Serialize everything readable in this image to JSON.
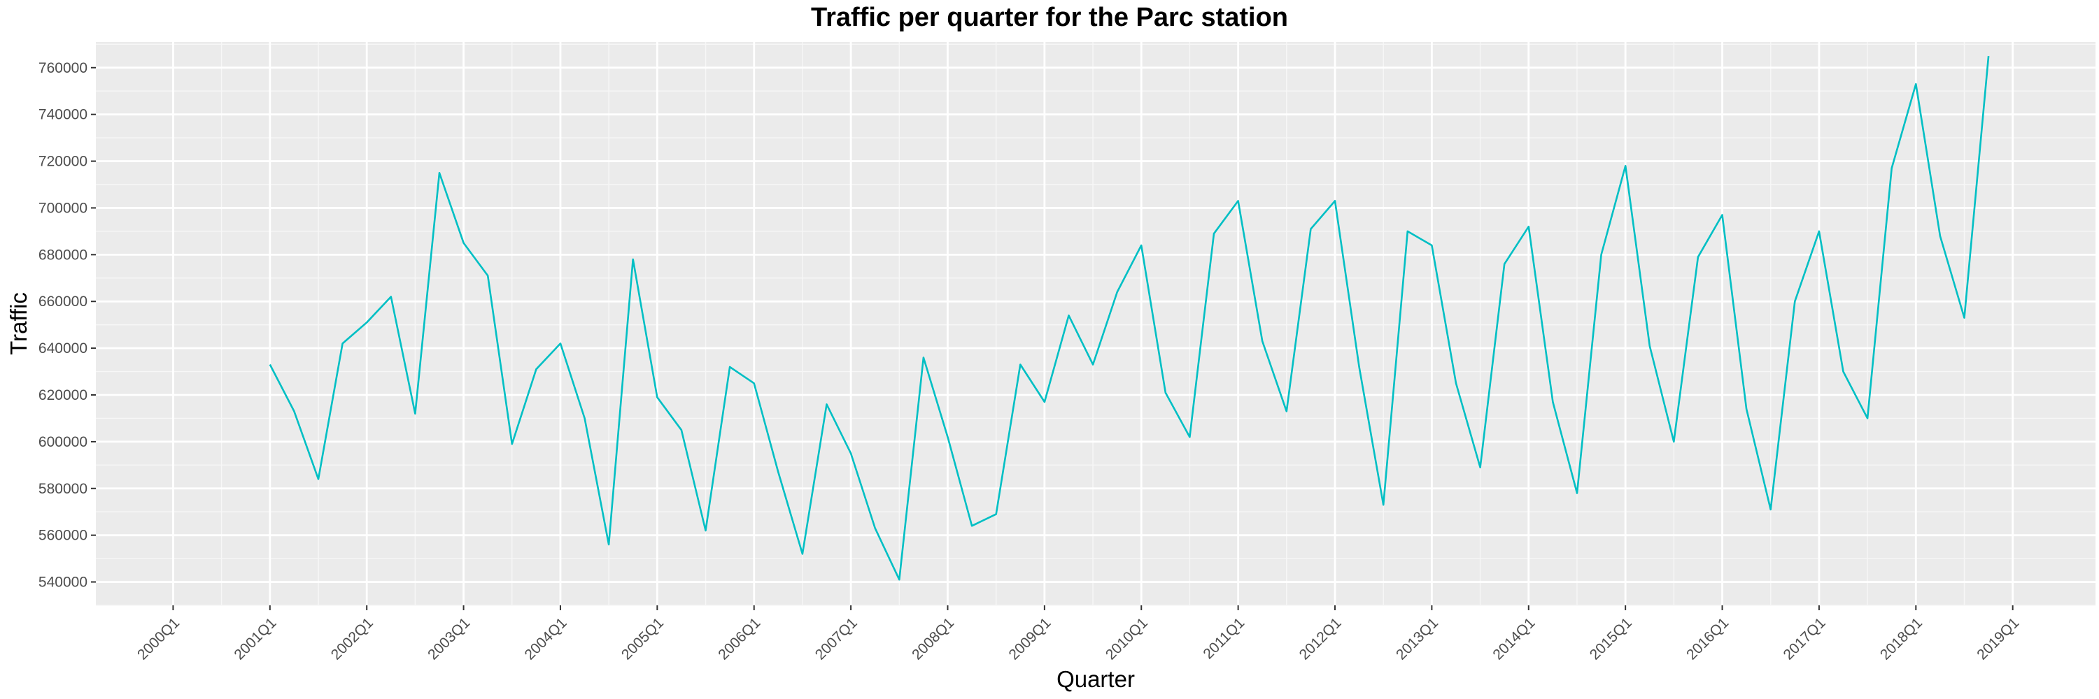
{
  "chart_data": {
    "type": "line",
    "title": "Traffic per quarter for the Parc station",
    "xlabel": "Quarter",
    "ylabel": "Traffic",
    "x_tick_labels": [
      "2000Q1",
      "2001Q1",
      "2002Q1",
      "2003Q1",
      "2004Q1",
      "2005Q1",
      "2006Q1",
      "2007Q1",
      "2008Q1",
      "2009Q1",
      "2010Q1",
      "2011Q1",
      "2012Q1",
      "2013Q1",
      "2014Q1",
      "2015Q1",
      "2016Q1",
      "2017Q1",
      "2018Q1",
      "2019Q1"
    ],
    "y_ticks": [
      540000,
      560000,
      580000,
      600000,
      620000,
      640000,
      660000,
      680000,
      700000,
      720000,
      740000,
      760000
    ],
    "xlim": [
      "2000Q1",
      "2019Q1"
    ],
    "ylim": [
      530000,
      771000
    ],
    "grid": true,
    "series": [
      {
        "color": "#00bfc4",
        "x": [
          "2001Q1",
          "2001Q2",
          "2001Q3",
          "2001Q4",
          "2002Q1",
          "2002Q2",
          "2002Q3",
          "2002Q4",
          "2003Q1",
          "2003Q2",
          "2003Q3",
          "2003Q4",
          "2004Q1",
          "2004Q2",
          "2004Q3",
          "2004Q4",
          "2005Q1",
          "2005Q2",
          "2005Q3",
          "2005Q4",
          "2006Q1",
          "2006Q2",
          "2006Q3",
          "2006Q4",
          "2007Q1",
          "2007Q2",
          "2007Q3",
          "2007Q4",
          "2008Q1",
          "2008Q2",
          "2008Q3",
          "2008Q4",
          "2009Q1",
          "2009Q2",
          "2009Q3",
          "2009Q4",
          "2010Q1",
          "2010Q2",
          "2010Q3",
          "2010Q4",
          "2011Q1",
          "2011Q2",
          "2011Q3",
          "2011Q4",
          "2012Q1",
          "2012Q2",
          "2012Q3",
          "2012Q4",
          "2013Q1",
          "2013Q2",
          "2013Q3",
          "2013Q4",
          "2014Q1",
          "2014Q2",
          "2014Q3",
          "2014Q4",
          "2015Q1",
          "2015Q2",
          "2015Q3",
          "2015Q4",
          "2016Q1",
          "2016Q2",
          "2016Q3",
          "2016Q4",
          "2017Q1",
          "2017Q2",
          "2017Q3",
          "2017Q4",
          "2018Q1",
          "2018Q2",
          "2018Q3",
          "2018Q4"
        ],
        "values": [
          633000,
          613000,
          584000,
          642000,
          651000,
          662000,
          612000,
          715000,
          685000,
          671000,
          599000,
          631000,
          642000,
          610000,
          556000,
          678000,
          619000,
          605000,
          562000,
          632000,
          625000,
          587000,
          552000,
          616000,
          595000,
          563000,
          541000,
          636000,
          602000,
          564000,
          569000,
          633000,
          617000,
          654000,
          633000,
          664000,
          684000,
          621000,
          602000,
          689000,
          703000,
          643000,
          613000,
          691000,
          703000,
          632000,
          573000,
          690000,
          684000,
          625000,
          589000,
          676000,
          692000,
          617000,
          578000,
          680000,
          718000,
          641000,
          600000,
          679000,
          697000,
          614000,
          571000,
          660000,
          690000,
          630000,
          610000,
          717000,
          753000,
          688000,
          653000,
          765000
        ]
      }
    ]
  }
}
